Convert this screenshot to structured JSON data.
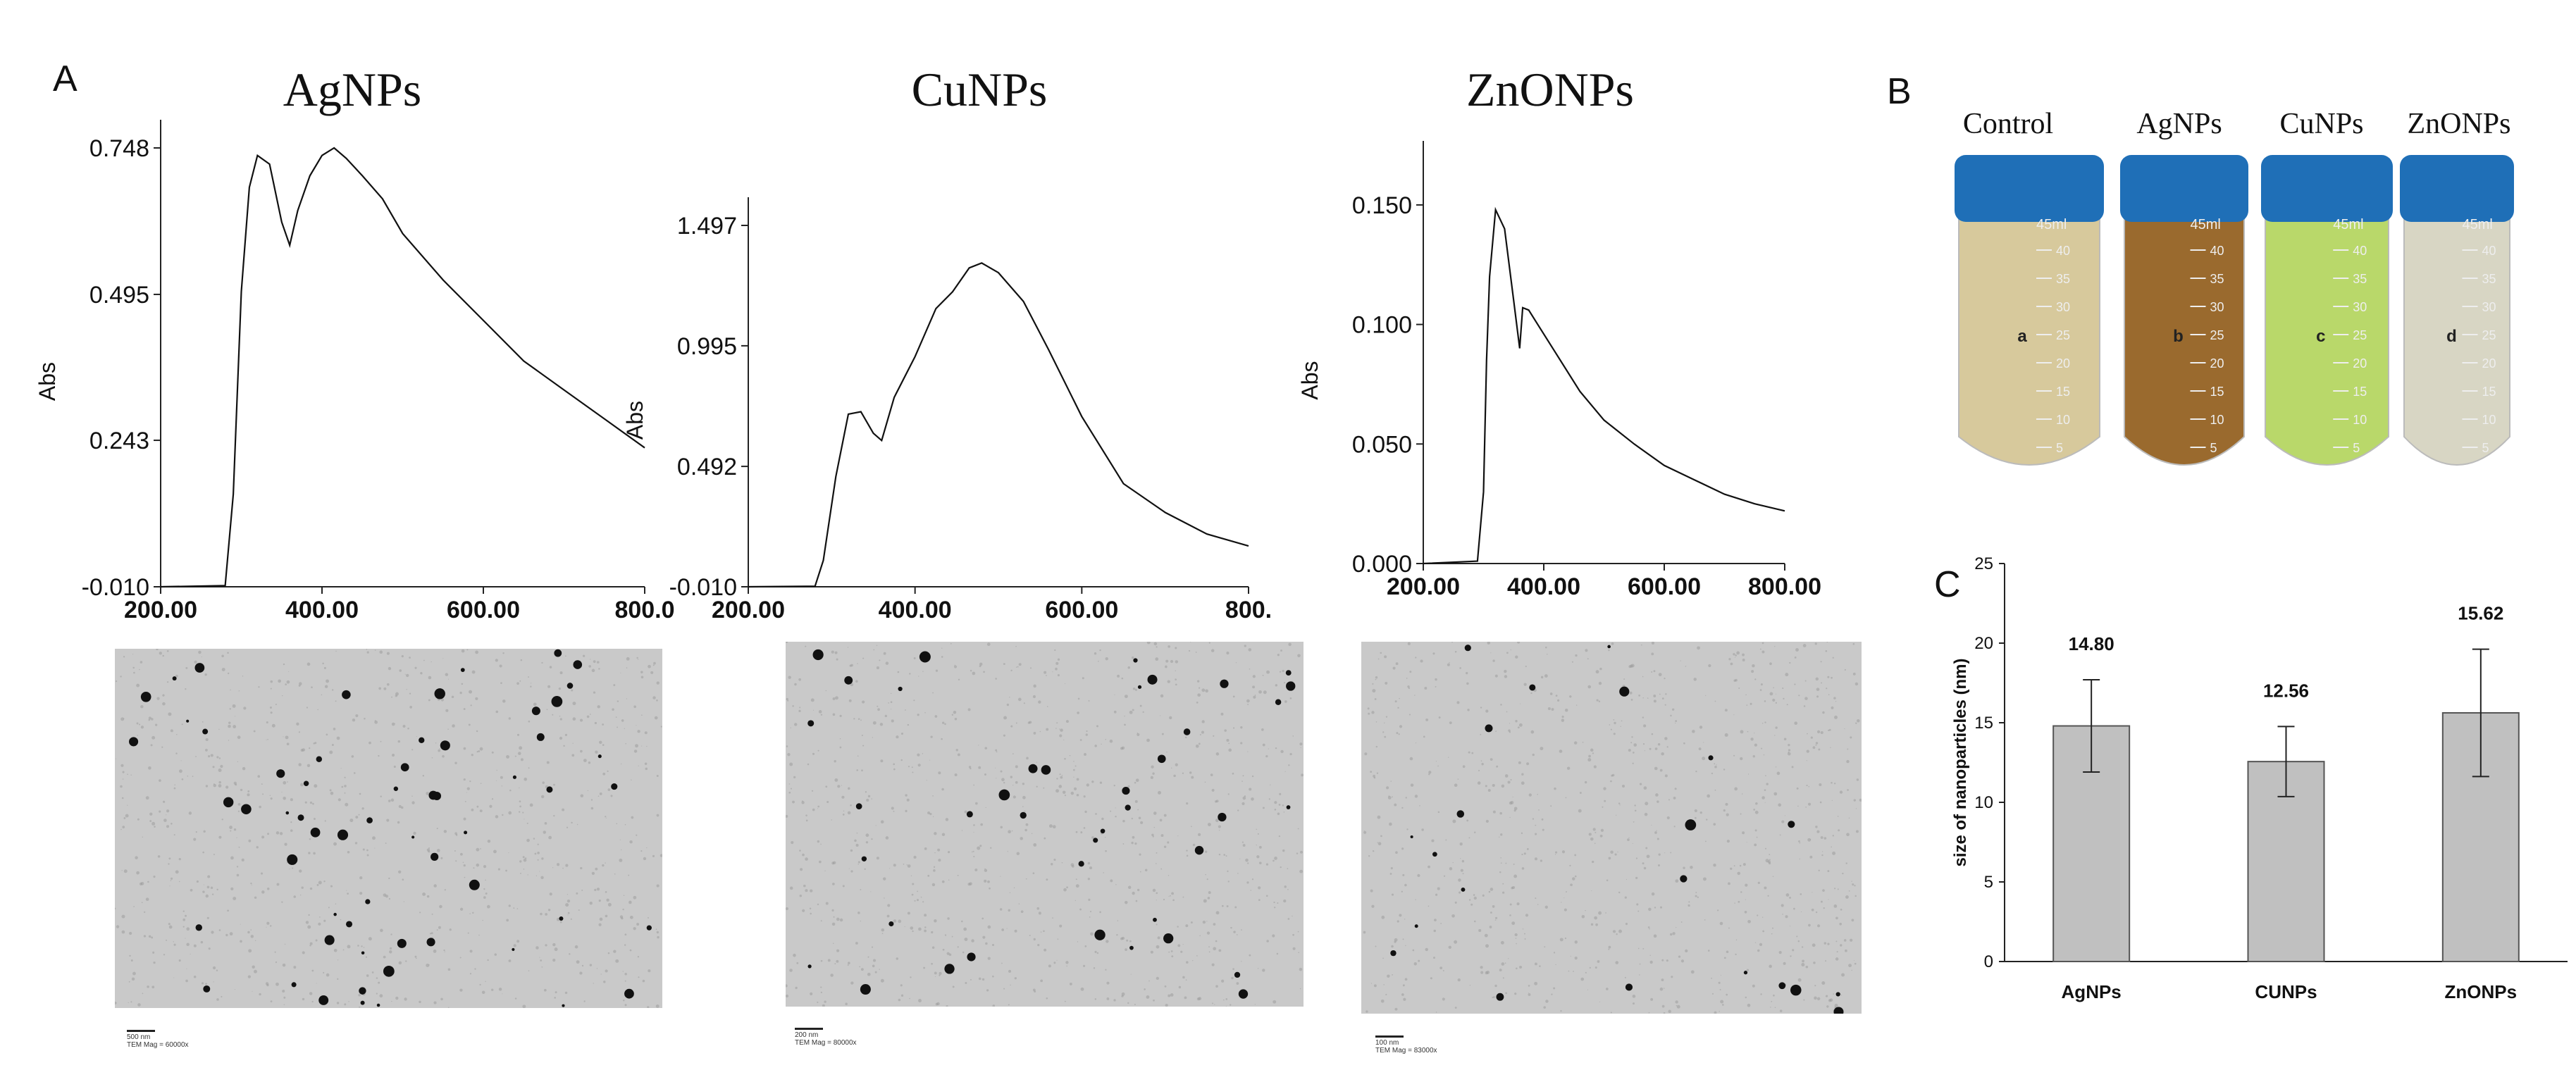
{
  "panels": {
    "a": "A",
    "b": "B",
    "c": "C"
  },
  "uv": [
    {
      "title": "AgNPs",
      "ylabel": "Abs",
      "yticks": [
        "0.748",
        "0.495",
        "0.243",
        "-0.010"
      ],
      "yvals": [
        0.748,
        0.495,
        0.243,
        -0.01
      ],
      "ylim": [
        -0.01,
        0.748
      ],
      "xticks": [
        "200.00",
        "400.00",
        "600.00",
        "800.0"
      ],
      "xvals": [
        200,
        400,
        600,
        800
      ],
      "xlim": [
        200,
        800
      ],
      "x": [
        200,
        280,
        290,
        300,
        310,
        320,
        335,
        350,
        360,
        370,
        385,
        400,
        415,
        430,
        450,
        475,
        500,
        550,
        600,
        650,
        700,
        750,
        800
      ],
      "y": [
        -0.01,
        -0.008,
        0.15,
        0.5,
        0.68,
        0.735,
        0.72,
        0.62,
        0.58,
        0.64,
        0.7,
        0.735,
        0.748,
        0.73,
        0.7,
        0.66,
        0.6,
        0.52,
        0.45,
        0.38,
        0.33,
        0.28,
        0.23
      ]
    },
    {
      "title": "CuNPs",
      "ylabel": "Abs",
      "yticks": [
        "1.497",
        "0.995",
        "0.492",
        "-0.010"
      ],
      "yvals": [
        1.497,
        0.995,
        0.492,
        -0.01
      ],
      "ylim": [
        -0.01,
        1.497
      ],
      "xticks": [
        "200.00",
        "400.00",
        "600.00",
        "800."
      ],
      "xvals": [
        200,
        400,
        600,
        800
      ],
      "xlim": [
        200,
        800
      ],
      "x": [
        200,
        280,
        290,
        305,
        320,
        335,
        350,
        360,
        375,
        400,
        425,
        445,
        465,
        480,
        500,
        530,
        560,
        600,
        650,
        700,
        750,
        800
      ],
      "y": [
        -0.01,
        -0.008,
        0.1,
        0.45,
        0.71,
        0.72,
        0.63,
        0.6,
        0.78,
        0.95,
        1.15,
        1.22,
        1.32,
        1.34,
        1.3,
        1.18,
        0.98,
        0.7,
        0.42,
        0.3,
        0.21,
        0.16
      ]
    },
    {
      "title": "ZnONPs",
      "ylabel": "Abs",
      "yticks": [
        "0.150",
        "0.100",
        "0.050",
        "0.000"
      ],
      "yvals": [
        0.15,
        0.1,
        0.05,
        0.0
      ],
      "ylim": [
        0.0,
        0.165
      ],
      "xticks": [
        "200.00",
        "400.00",
        "600.00",
        "800.00"
      ],
      "xvals": [
        200,
        400,
        600,
        800
      ],
      "xlim": [
        200,
        800
      ],
      "x": [
        200,
        290,
        300,
        305,
        310,
        320,
        335,
        350,
        360,
        365,
        375,
        390,
        420,
        460,
        500,
        550,
        600,
        650,
        700,
        750,
        800
      ],
      "y": [
        0.0,
        0.001,
        0.03,
        0.085,
        0.12,
        0.148,
        0.14,
        0.11,
        0.09,
        0.107,
        0.106,
        0.1,
        0.088,
        0.072,
        0.06,
        0.05,
        0.041,
        0.035,
        0.029,
        0.025,
        0.022
      ]
    }
  ],
  "tem_scale": [
    "500 nm\nTEM Mag = 60000x",
    "200 nm\nTEM Mag = 80000x",
    "100 nm\nTEM Mag = 83000x"
  ],
  "tubes": {
    "labels": [
      "Control",
      "AgNPs",
      "CuNPs",
      "ZnONPs"
    ],
    "letters": [
      "a",
      "b",
      "c",
      "d"
    ],
    "colors": [
      "#d7c99c",
      "#9a6a2e",
      "#b9d86a",
      "#d8d6c4"
    ],
    "cap_color": "#1f6fb7",
    "grad_top": "45ml",
    "grad_marks": [
      "40",
      "35",
      "30",
      "25",
      "20",
      "15",
      "10",
      "5"
    ]
  },
  "chart_data": {
    "type": "bar",
    "categories": [
      "AgNPs",
      "CUNPs",
      "ZnONPs"
    ],
    "values": [
      14.8,
      12.56,
      15.62
    ],
    "value_labels": [
      "14.80",
      "12.56",
      "15.62"
    ],
    "errors": [
      2.9,
      2.2,
      4.0
    ],
    "ylabel": "size of nanoparticles (nm)",
    "ylim": [
      0,
      25
    ],
    "yticks": [
      "0",
      "5",
      "10",
      "15",
      "20",
      "25"
    ],
    "bar_color": "#c0c0c0"
  }
}
